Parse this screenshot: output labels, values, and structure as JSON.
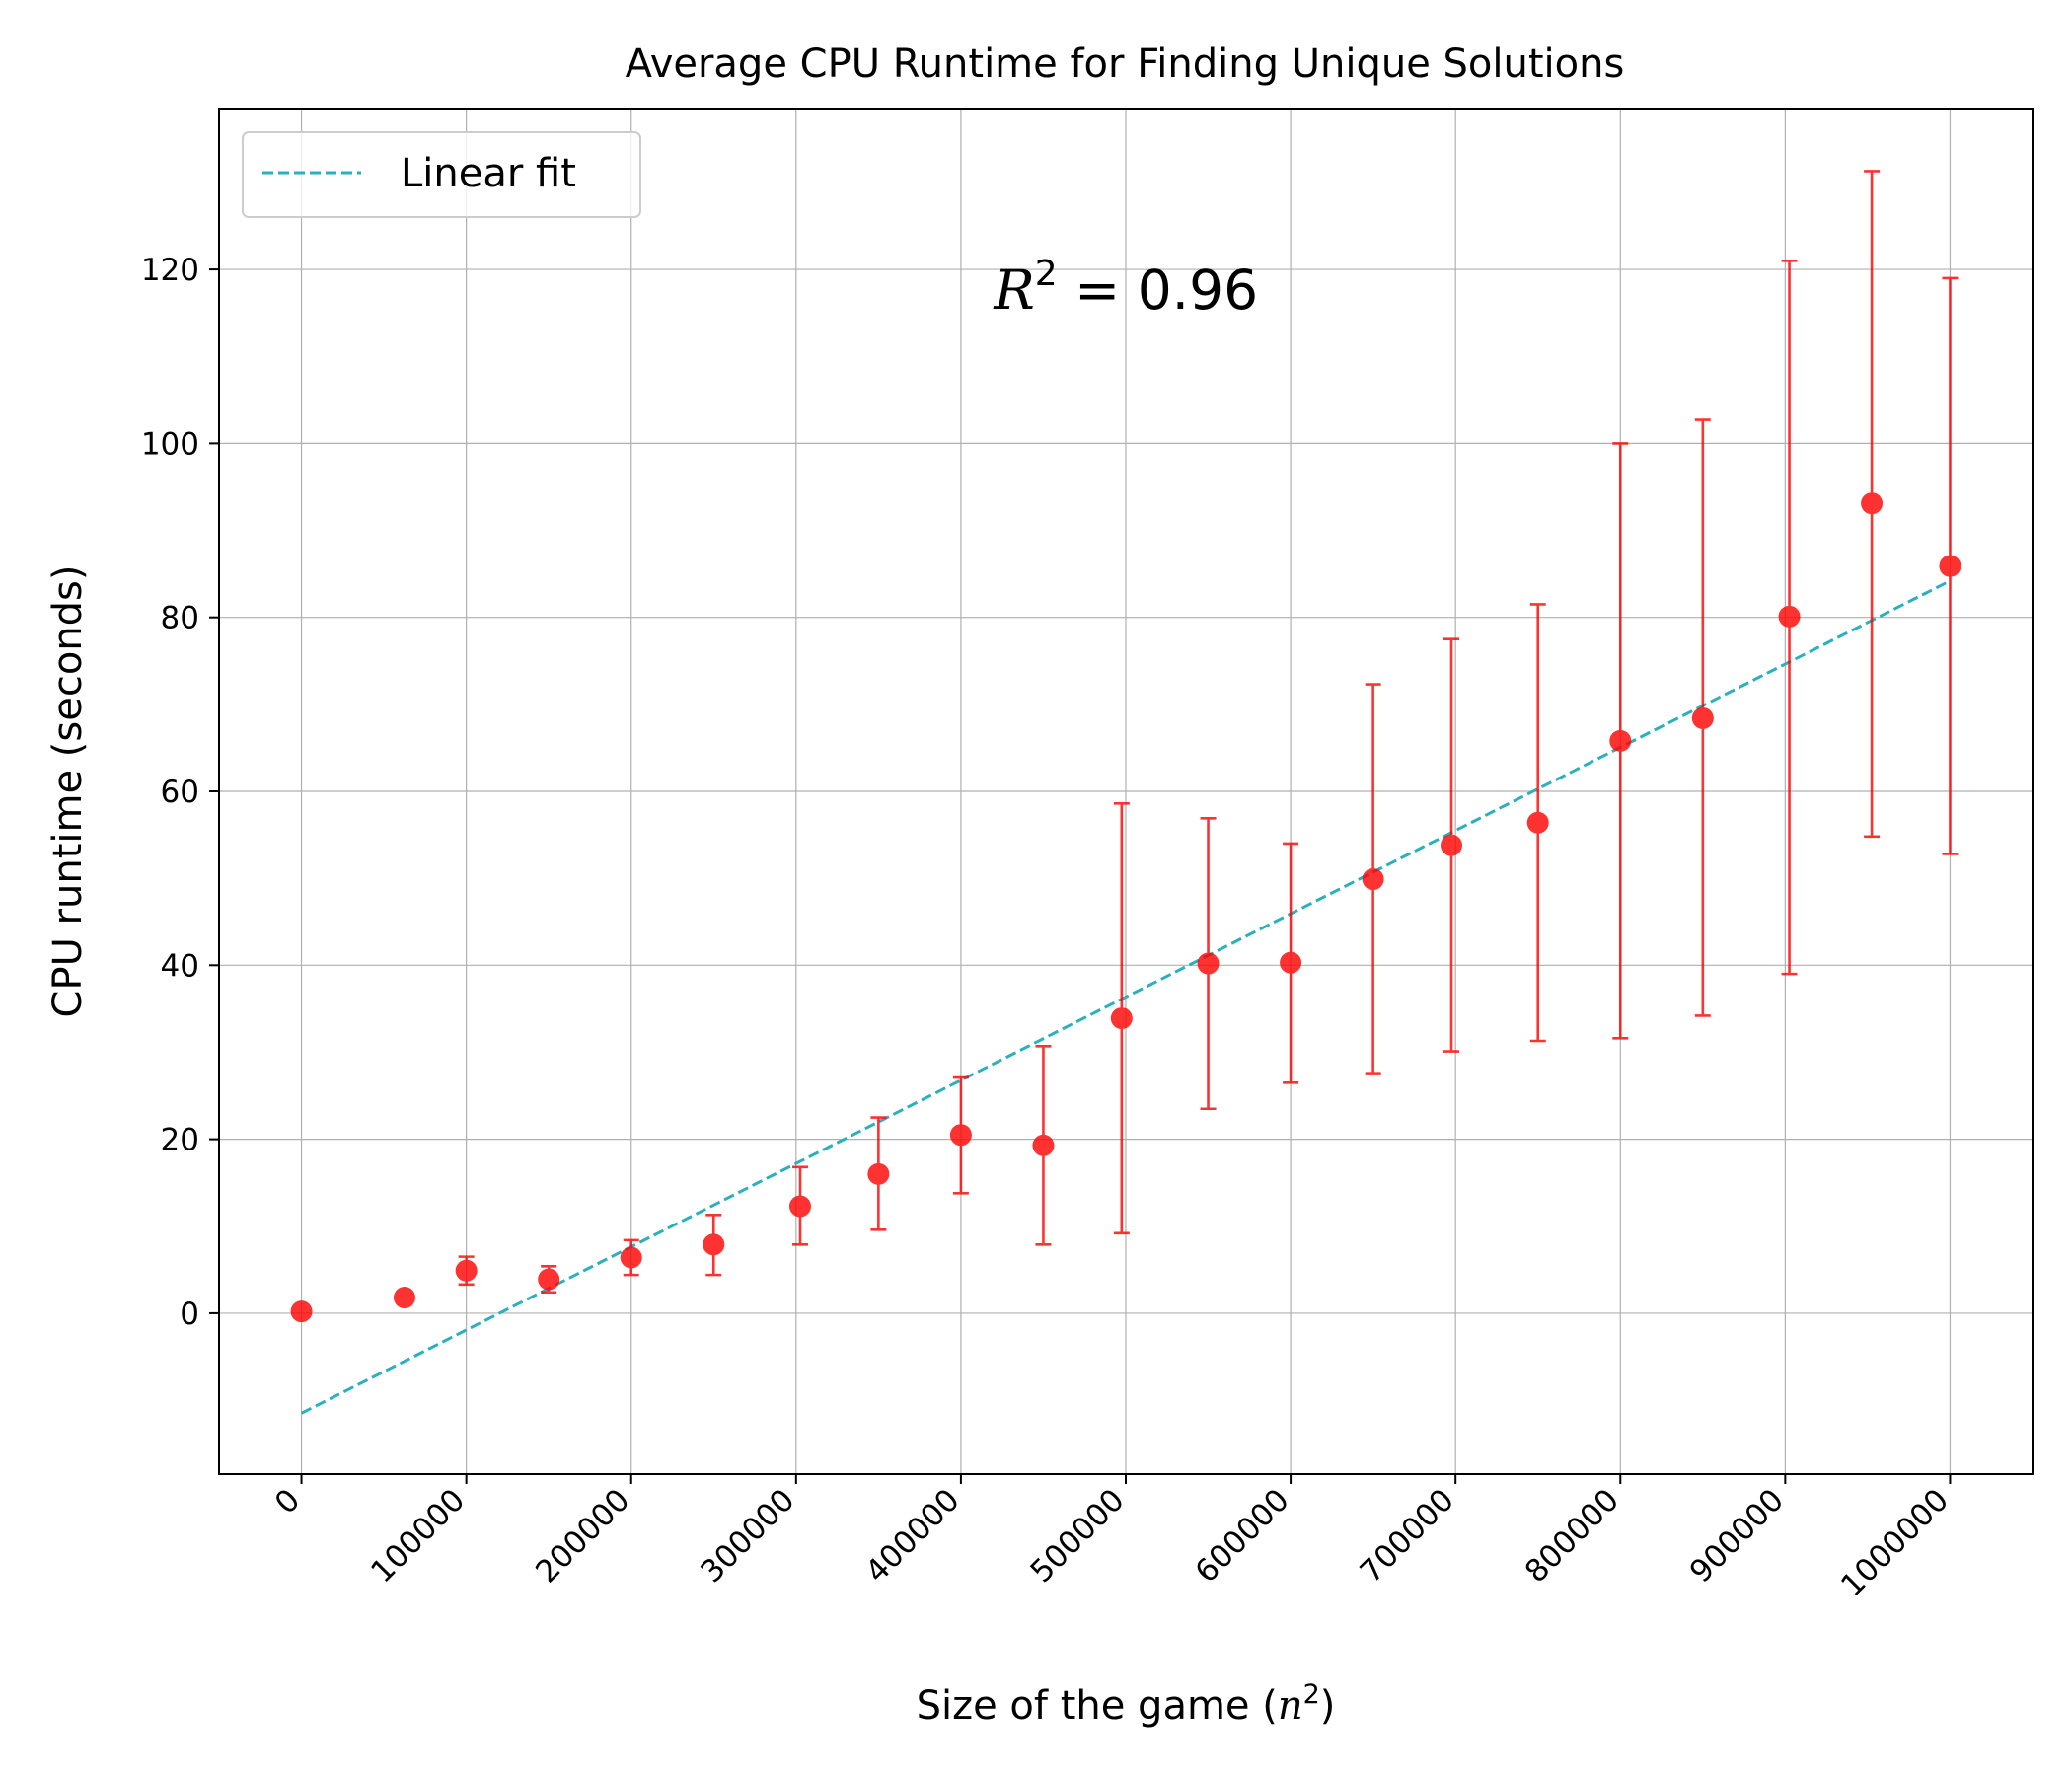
{
  "chart_data": {
    "type": "scatter",
    "title": "Average CPU Runtime for Finding Unique Solutions",
    "xlabel": "Size of the game (",
    "xlabel_var": "n",
    "xlabel_exp": "2",
    "xlabel_close": ")",
    "ylabel": "CPU runtime (seconds)",
    "xlim": [
      -50000,
      1050000
    ],
    "ylim": [
      -18.5,
      138.5
    ],
    "x_ticks": [
      0,
      100000,
      200000,
      300000,
      400000,
      500000,
      600000,
      700000,
      800000,
      900000,
      1000000
    ],
    "x_tick_labels": [
      "0",
      "100000",
      "200000",
      "300000",
      "400000",
      "500000",
      "600000",
      "700000",
      "800000",
      "900000",
      "1000000"
    ],
    "y_ticks": [
      0,
      20,
      40,
      60,
      80,
      100,
      120
    ],
    "y_tick_labels": [
      "0",
      "20",
      "40",
      "60",
      "80",
      "100",
      "120"
    ],
    "grid": true,
    "legend_position": "top-left",
    "series": [
      {
        "name": "",
        "kind": "errorbar-points",
        "color": "#ff0000",
        "x": [
          0,
          62500,
          100000,
          150000,
          200000,
          250000,
          302500,
          350000,
          400000,
          450000,
          497500,
          550000,
          600000,
          650000,
          697500,
          750000,
          800000,
          850000,
          902500,
          952500,
          1000000
        ],
        "y": [
          0.2,
          1.8,
          4.9,
          3.9,
          6.4,
          7.9,
          12.3,
          16.0,
          20.5,
          19.3,
          33.9,
          40.2,
          40.3,
          49.9,
          53.8,
          56.4,
          65.8,
          68.4,
          80.1,
          93.1,
          85.9
        ],
        "y_lower": [
          0.2,
          1.1,
          3.3,
          2.4,
          4.4,
          4.4,
          7.9,
          9.6,
          13.8,
          7.9,
          9.2,
          23.5,
          26.5,
          27.6,
          30.1,
          31.3,
          31.6,
          34.2,
          39.0,
          54.8,
          52.8
        ],
        "y_upper": [
          0.2,
          2.5,
          6.5,
          5.4,
          8.4,
          11.3,
          16.8,
          22.5,
          27.1,
          30.7,
          58.6,
          56.9,
          54.0,
          72.3,
          77.5,
          81.5,
          100.0,
          102.7,
          121.0,
          131.3,
          119.0
        ]
      },
      {
        "name": "Linear fit",
        "kind": "line",
        "color": "#2ab1bc",
        "dash": "dashed",
        "x": [
          0,
          1000000
        ],
        "y": [
          -11.5,
          84.2
        ]
      }
    ],
    "annotation": {
      "var": "R",
      "exp": "2",
      "text": " = 0.96",
      "x": 420000,
      "y": 115.5
    }
  }
}
